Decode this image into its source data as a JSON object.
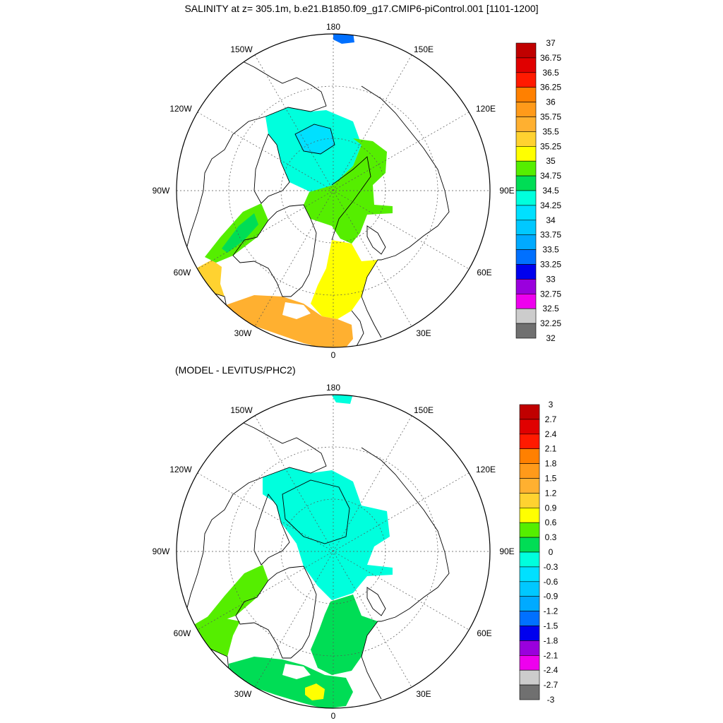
{
  "figure": {
    "title": "SALINITY at z= 305.1m, b.e21.B1850.f09_g17.CMIP6-piControl.001 [1101-1200]",
    "subtitle": "(MODEL - LEVITUS/PHC2)"
  },
  "longitude_labels": [
    "180",
    "150E",
    "120E",
    "90E",
    "60E",
    "30E",
    "0",
    "30W",
    "60W",
    "90W",
    "120W",
    "150W"
  ],
  "colorbars": {
    "salinity": {
      "labels": [
        "37",
        "36.75",
        "36.5",
        "36.25",
        "36",
        "35.75",
        "35.5",
        "35.25",
        "35",
        "34.75",
        "34.5",
        "34.25",
        "34",
        "33.75",
        "33.5",
        "33.25",
        "33",
        "32.75",
        "32.5",
        "32.25",
        "32"
      ],
      "colors": [
        "#c00000",
        "#e00000",
        "#ff1a00",
        "#ff8000",
        "#ff9a1a",
        "#ffb030",
        "#ffd230",
        "#ffff00",
        "#55ee00",
        "#00dd55",
        "#00ffdd",
        "#00e0ff",
        "#00c8ff",
        "#00aaff",
        "#0070ff",
        "#0000ee",
        "#9a00dd",
        "#ee00ee",
        "#cccccc",
        "#707070"
      ]
    },
    "difference": {
      "labels": [
        "3",
        "2.7",
        "2.4",
        "2.1",
        "1.8",
        "1.5",
        "1.2",
        "0.9",
        "0.6",
        "0.3",
        "0",
        "-0.3",
        "-0.6",
        "-0.9",
        "-1.2",
        "-1.5",
        "-1.8",
        "-2.1",
        "-2.4",
        "-2.7",
        "-3"
      ],
      "colors": [
        "#c00000",
        "#e00000",
        "#ff1a00",
        "#ff8000",
        "#ff9a1a",
        "#ffb030",
        "#ffd230",
        "#ffff00",
        "#55ee00",
        "#00dd55",
        "#00ffdd",
        "#00e0ff",
        "#00c8ff",
        "#00aaff",
        "#0070ff",
        "#0000ee",
        "#9a00dd",
        "#ee00ee",
        "#cccccc",
        "#707070"
      ]
    }
  },
  "fields": {
    "salinity": {
      "canada_basin": "#00ffdd",
      "canada_basin_core": "#00e0ff",
      "eurasian_basin": "#55ee00",
      "barents_sea": "#ffff00",
      "nordic_seas": "#ffb030",
      "labrador_sea": "#ffd230",
      "baffin_bay": "#55ee00",
      "baffin_bay_inner": "#00dd55",
      "bering_strait": "#0070ff"
    },
    "difference": {
      "canada_basin": "#00ffdd",
      "eurasian_basin": "#00ffdd",
      "barents_sea": "#00dd55",
      "nordic_seas": "#00dd55",
      "labrador_sea": "#55ee00",
      "baffin_bay": "#55ee00",
      "north_atlantic_patch": "#ffff00",
      "bering_strait": "#00ffdd"
    }
  }
}
